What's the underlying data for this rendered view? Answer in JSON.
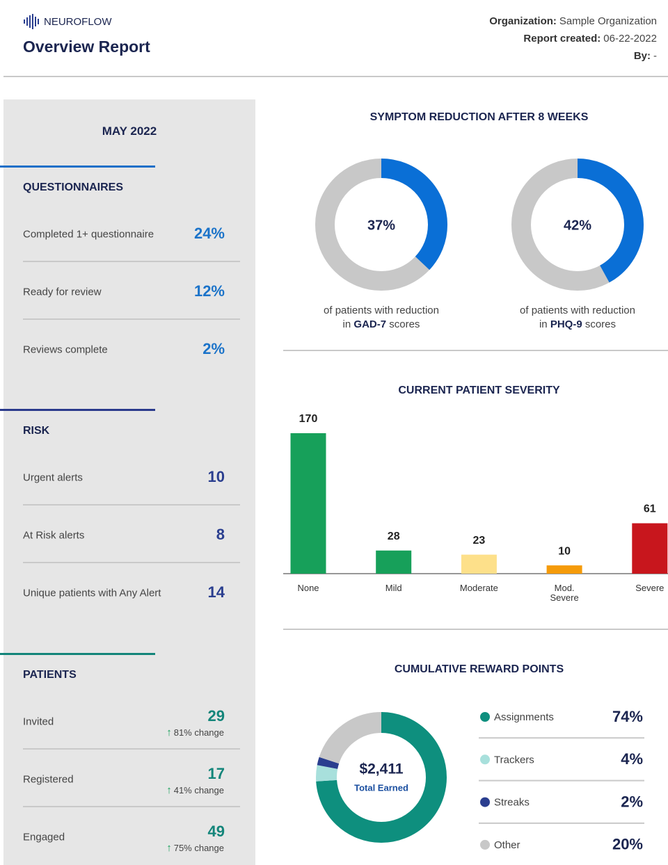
{
  "header": {
    "brand": "NEUROFLOW",
    "title": "Overview Report",
    "meta": [
      {
        "label": "Organization:",
        "value": "Sample Organization"
      },
      {
        "label": "Report created:",
        "value": "06-22-2022"
      },
      {
        "label": "By:",
        "value": "-"
      }
    ]
  },
  "sidebar": {
    "period": "MAY 2022",
    "sections": [
      {
        "title": "QUESTIONNAIRES",
        "items": [
          {
            "label": "Completed 1+ questionnaire",
            "value": "24%"
          },
          {
            "label": "Ready for review",
            "value": "12%"
          },
          {
            "label": "Reviews complete",
            "value": "2%"
          }
        ]
      },
      {
        "title": "RISK",
        "items": [
          {
            "label": "Urgent alerts",
            "value": "10"
          },
          {
            "label": "At Risk alerts",
            "value": "8"
          },
          {
            "label": "Unique patients with Any Alert",
            "value": "14"
          }
        ]
      },
      {
        "title": "PATIENTS",
        "items": [
          {
            "label": "Invited",
            "value": "29",
            "change": "81% change"
          },
          {
            "label": "Registered",
            "value": "17",
            "change": "41% change"
          },
          {
            "label": "Engaged",
            "value": "49",
            "change": "75% change"
          }
        ]
      }
    ]
  },
  "chart_data": [
    {
      "type": "donut",
      "title": "SYMPTOM REDUCTION AFTER 8 WEEKS",
      "color": "#0a6fd6",
      "series": [
        {
          "value": 37,
          "value_label": "37%",
          "caption": "of patients with reduction",
          "prefix": "in",
          "measure": "GAD-7",
          "suffix": "scores"
        },
        {
          "value": 42,
          "value_label": "42%",
          "caption": "of patients with reduction",
          "prefix": "in",
          "measure": "PHQ-9",
          "suffix": "scores"
        }
      ]
    },
    {
      "type": "bar",
      "title": "CURRENT PATIENT SEVERITY",
      "categories": [
        "None",
        "Mild",
        "Moderate",
        "Mod. Severe",
        "Severe"
      ],
      "values": [
        170,
        28,
        23,
        10,
        61
      ],
      "colors": [
        "#17a05a",
        "#17a05a",
        "#fde08a",
        "#f59b0a",
        "#c8161d"
      ]
    },
    {
      "type": "pie",
      "title": "CUMULATIVE REWARD POINTS",
      "total_label": "$2,411",
      "total_caption": "Total Earned",
      "categories": [
        "Assignments",
        "Trackers",
        "Streaks",
        "Other"
      ],
      "values": [
        74,
        4,
        2,
        20
      ],
      "value_labels": [
        "74%",
        "4%",
        "2%",
        "20%"
      ],
      "colors": [
        "#0e8f7e",
        "#a8e0dc",
        "#2a3e8f",
        "#c8c8c8"
      ]
    }
  ]
}
